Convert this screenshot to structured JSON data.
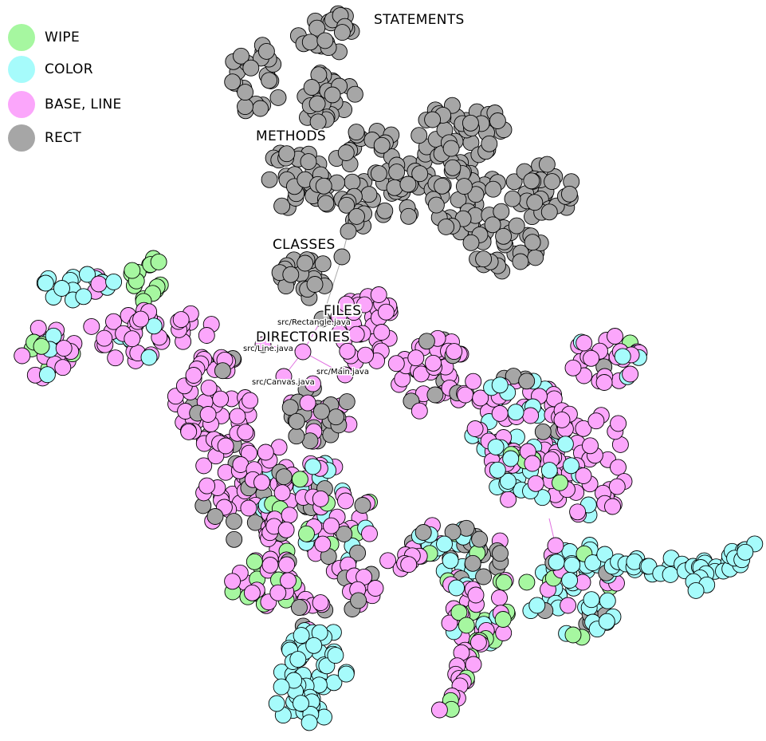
{
  "legend": {
    "items": [
      {
        "label": "WIPE",
        "color": "#a6f7a0"
      },
      {
        "label": "COLOR",
        "color": "#a6fbfb"
      },
      {
        "label": "BASE, LINE",
        "color": "#fba6fb"
      },
      {
        "label": "RECT",
        "color": "#a6a6a6"
      }
    ]
  },
  "labels": {
    "statements": "STATEMENTS",
    "methods": "METHODS",
    "classes": "CLASSES",
    "files": "FILES",
    "directories": "DIRECTORIES"
  },
  "files": {
    "rectangle": "src/Rectangle.java",
    "line": "src/Line.java",
    "main": "src/Main.java",
    "canvas": "src/Canvas.java"
  },
  "colors": {
    "wipe": "#a6f7a0",
    "color": "#a6fbfb",
    "base_line": "#fba6fb",
    "rect": "#a6a6a6",
    "pink_edge": "#e070e0"
  }
}
